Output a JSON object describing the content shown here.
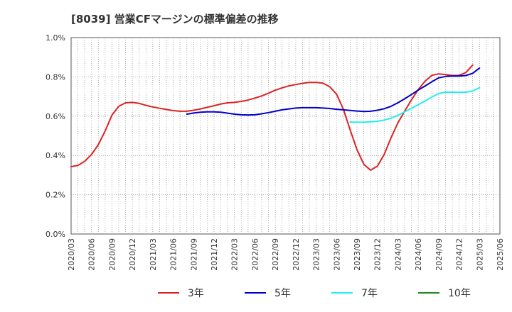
{
  "chart_data": {
    "type": "line",
    "title": "[8039]  営業CFマージンの標準偏差の推移",
    "xlabel": "",
    "ylabel": "",
    "ylim": [
      0,
      1.0
    ],
    "y_ticks": [
      "0.0%",
      "0.2%",
      "0.4%",
      "0.6%",
      "0.8%",
      "1.0%"
    ],
    "x_ticks": [
      "2020/03",
      "2020/06",
      "2020/09",
      "2020/12",
      "2021/03",
      "2021/06",
      "2021/09",
      "2021/12",
      "2022/03",
      "2022/06",
      "2022/09",
      "2022/12",
      "2023/03",
      "2023/06",
      "2023/09",
      "2023/12",
      "2024/03",
      "2024/06",
      "2024/09",
      "2024/12",
      "2025/03",
      "2025/06"
    ],
    "grid": true,
    "legend_position": "bottom",
    "series": [
      {
        "name": "3年",
        "color": "#dd2222",
        "start": "2020/03",
        "values": [
          0.343,
          0.349,
          0.37,
          0.405,
          0.455,
          0.525,
          0.605,
          0.65,
          0.668,
          0.67,
          0.665,
          0.655,
          0.647,
          0.64,
          0.634,
          0.628,
          0.625,
          0.625,
          0.63,
          0.637,
          0.645,
          0.653,
          0.662,
          0.668,
          0.67,
          0.675,
          0.682,
          0.692,
          0.703,
          0.717,
          0.732,
          0.744,
          0.754,
          0.761,
          0.767,
          0.772,
          0.772,
          0.768,
          0.75,
          0.712,
          0.635,
          0.53,
          0.43,
          0.355,
          0.325,
          0.345,
          0.405,
          0.49,
          0.565,
          0.625,
          0.683,
          0.735,
          0.778,
          0.808,
          0.815,
          0.812,
          0.807,
          0.808,
          0.822,
          0.86
        ]
      },
      {
        "name": "5年",
        "color": "#0000cc",
        "start": "2021/08",
        "values": [
          0.61,
          0.616,
          0.62,
          0.622,
          0.622,
          0.62,
          0.615,
          0.61,
          0.607,
          0.606,
          0.607,
          0.612,
          0.618,
          0.625,
          0.632,
          0.637,
          0.641,
          0.643,
          0.643,
          0.643,
          0.641,
          0.639,
          0.635,
          0.632,
          0.629,
          0.626,
          0.624,
          0.625,
          0.63,
          0.638,
          0.65,
          0.668,
          0.688,
          0.71,
          0.733,
          0.753,
          0.775,
          0.795,
          0.802,
          0.804,
          0.804,
          0.807,
          0.818,
          0.845
        ]
      },
      {
        "name": "7年",
        "color": "#22eeee",
        "start": "2023/08",
        "values": [
          0.57,
          0.569,
          0.569,
          0.571,
          0.574,
          0.58,
          0.59,
          0.604,
          0.622,
          0.64,
          0.658,
          0.677,
          0.697,
          0.715,
          0.722,
          0.722,
          0.721,
          0.722,
          0.728,
          0.745
        ]
      },
      {
        "name": "10年",
        "color": "#228822",
        "start": "",
        "values": []
      }
    ]
  }
}
